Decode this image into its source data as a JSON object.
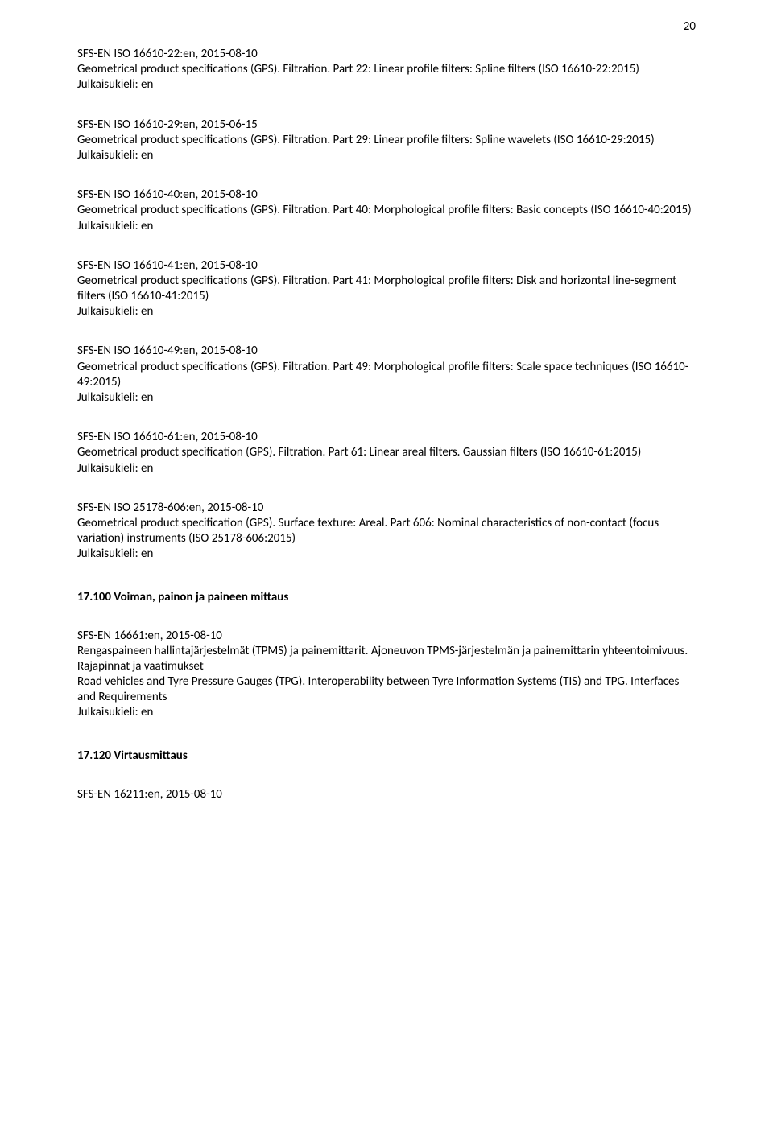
{
  "page_number": "20",
  "entries": [
    {
      "code": "SFS-EN ISO 16610-22:en, 2015-08-10",
      "desc": "Geometrical product specifications (GPS). Filtration. Part 22: Linear profile filters: Spline filters (ISO 16610-22:2015)",
      "lang": "Julkaisukieli: en"
    },
    {
      "code": "SFS-EN ISO 16610-29:en, 2015-06-15",
      "desc": "Geometrical product specifications (GPS). Filtration. Part 29: Linear profile filters: Spline wavelets (ISO 16610-29:2015)",
      "lang": "Julkaisukieli: en"
    },
    {
      "code": "SFS-EN ISO 16610-40:en, 2015-08-10",
      "desc": "Geometrical product specifications (GPS). Filtration. Part 40: Morphological profile filters: Basic concepts (ISO 16610-40:2015)",
      "lang": "Julkaisukieli: en"
    },
    {
      "code": "SFS-EN ISO 16610-41:en, 2015-08-10",
      "desc": "Geometrical product specifications (GPS). Filtration. Part 41: Morphological profile filters: Disk and horizontal line-segment filters (ISO 16610-41:2015)",
      "lang": "Julkaisukieli: en"
    },
    {
      "code": "SFS-EN ISO 16610-49:en, 2015-08-10",
      "desc": "Geometrical product specifications (GPS). Filtration. Part 49: Morphological profile filters: Scale space techniques (ISO 16610-49:2015)",
      "lang": "Julkaisukieli: en"
    },
    {
      "code": "SFS-EN ISO 16610-61:en, 2015-08-10",
      "desc": "Geometrical product specification (GPS). Filtration. Part 61: Linear areal filters. Gaussian filters (ISO 16610-61:2015)",
      "lang": "Julkaisukieli: en"
    },
    {
      "code": "SFS-EN ISO 25178-606:en, 2015-08-10",
      "desc": "Geometrical product specification (GPS). Surface texture: Areal. Part 606: Nominal characteristics of non-contact (focus variation) instruments (ISO 25178-606:2015)",
      "lang": "Julkaisukieli: en"
    }
  ],
  "section1_heading": "17.100 Voiman, painon ja paineen mittaus",
  "section1_entry": {
    "code": "SFS-EN 16661:en, 2015-08-10",
    "desc_fi": "Rengaspaineen hallintajärjestelmät (TPMS) ja painemittarit. Ajoneuvon TPMS-järjestelmän ja painemittarin yhteentoimivuus. Rajapinnat ja vaatimukset",
    "desc_en": "Road vehicles and Tyre Pressure Gauges (TPG). Interoperability between Tyre Information Systems (TIS) and TPG. Interfaces and Requirements",
    "lang": "Julkaisukieli: en"
  },
  "section2_heading": "17.120 Virtausmittaus",
  "last_line": "SFS-EN 16211:en, 2015-08-10"
}
